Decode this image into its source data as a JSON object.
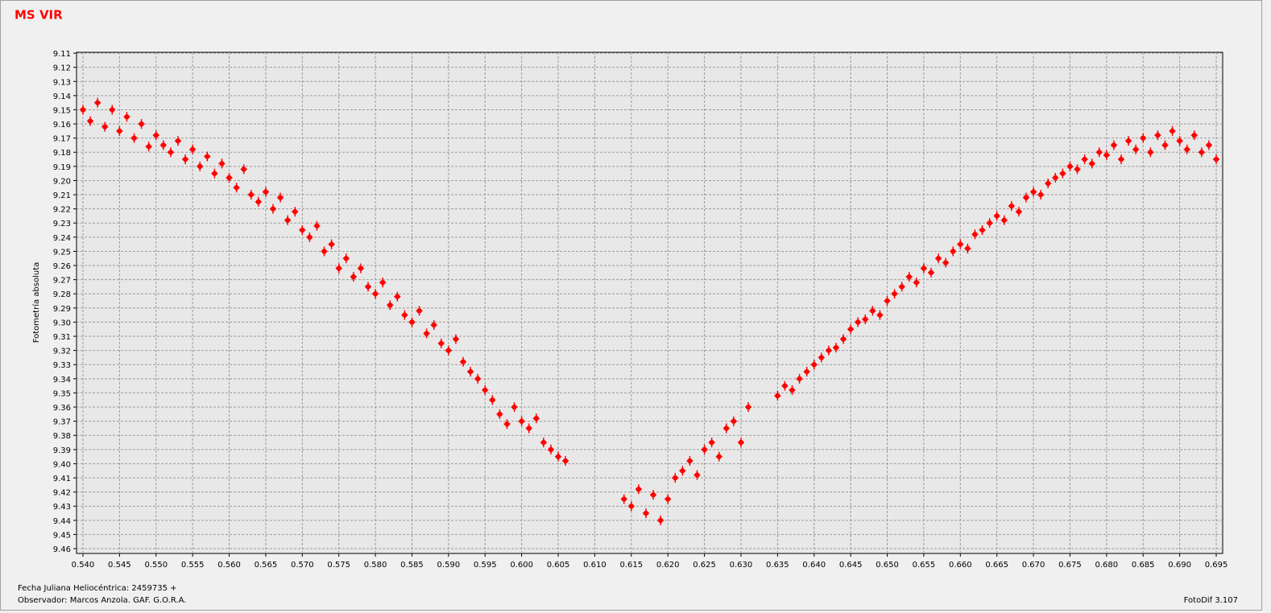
{
  "chart_data": {
    "type": "scatter",
    "title": "MS VIR",
    "y_label": "Fotometría absoluta",
    "x_label": "Fecha Juliana Heliocéntrica: 2459735 +",
    "observer": "Observador:  Marcos Anzola. GAF. G.O.R.A.",
    "software": "FotoDif 3.107",
    "color": "#ff0000",
    "grid": true,
    "y_inverted": true,
    "xlim": [
      0.53912,
      0.69588
    ],
    "ylim": [
      9.1094,
      9.4634
    ],
    "xticks": [
      {
        "value": 0.54,
        "label": "0.540"
      },
      0.545,
      {
        "value": 0.55,
        "label": "0.550"
      },
      0.555,
      {
        "value": 0.56,
        "label": "0.560"
      },
      0.565,
      {
        "value": 0.57,
        "label": "0.570"
      },
      0.575,
      {
        "value": 0.58,
        "label": "0.580"
      },
      0.585,
      {
        "value": 0.59,
        "label": "0.590"
      },
      0.595,
      {
        "value": 0.6,
        "label": "0.600"
      },
      0.605,
      {
        "value": 0.61,
        "label": "0.610"
      },
      0.615,
      {
        "value": 0.62,
        "label": "0.620"
      },
      0.625,
      {
        "value": 0.63,
        "label": "0.630"
      },
      0.635,
      {
        "value": 0.64,
        "label": "0.640"
      },
      0.645,
      {
        "value": 0.65,
        "label": "0.650"
      },
      0.655,
      {
        "value": 0.66,
        "label": "0.660"
      },
      0.665,
      {
        "value": 0.67,
        "label": "0.670"
      },
      0.675,
      {
        "value": 0.68,
        "label": "0.680"
      },
      0.685,
      {
        "value": 0.69,
        "label": "0.690"
      },
      0.695
    ],
    "yticks": [
      9.11,
      9.12,
      9.13,
      9.14,
      9.15,
      9.16,
      9.17,
      9.18,
      9.19,
      {
        "value": 9.2,
        "label": "9.20"
      },
      9.21,
      9.22,
      9.23,
      9.24,
      9.25,
      9.26,
      9.27,
      9.28,
      9.29,
      {
        "value": 9.3,
        "label": "9.30"
      },
      9.31,
      9.32,
      9.33,
      9.34,
      9.35,
      9.36,
      9.37,
      9.38,
      9.39,
      {
        "value": 9.4,
        "label": "9.40"
      },
      9.41,
      9.42,
      9.43,
      9.44,
      9.45,
      9.46
    ],
    "x": [
      0.54,
      0.541,
      0.542,
      0.543,
      0.544,
      0.545,
      0.546,
      0.547,
      0.548,
      0.549,
      0.55,
      0.551,
      0.552,
      0.553,
      0.554,
      0.555,
      0.556,
      0.557,
      0.558,
      0.559,
      0.56,
      0.561,
      0.562,
      0.563,
      0.564,
      0.565,
      0.566,
      0.567,
      0.568,
      0.569,
      0.57,
      0.571,
      0.572,
      0.573,
      0.574,
      0.575,
      0.576,
      0.577,
      0.578,
      0.579,
      0.58,
      0.581,
      0.582,
      0.583,
      0.584,
      0.585,
      0.586,
      0.587,
      0.588,
      0.589,
      0.59,
      0.591,
      0.592,
      0.593,
      0.594,
      0.595,
      0.596,
      0.597,
      0.598,
      0.599,
      0.6,
      0.601,
      0.602,
      0.603,
      0.604,
      0.605,
      0.606,
      0.614,
      0.615,
      0.616,
      0.617,
      0.618,
      0.619,
      0.62,
      0.621,
      0.622,
      0.623,
      0.624,
      0.625,
      0.626,
      0.627,
      0.628,
      0.629,
      0.63,
      0.631,
      0.635,
      0.636,
      0.637,
      0.638,
      0.639,
      0.64,
      0.641,
      0.642,
      0.643,
      0.644,
      0.645,
      0.646,
      0.647,
      0.648,
      0.649,
      0.65,
      0.651,
      0.652,
      0.653,
      0.654,
      0.655,
      0.656,
      0.657,
      0.658,
      0.659,
      0.66,
      0.661,
      0.662,
      0.663,
      0.664,
      0.665,
      0.666,
      0.667,
      0.668,
      0.669,
      0.67,
      0.671,
      0.672,
      0.673,
      0.674,
      0.675,
      0.676,
      0.677,
      0.678,
      0.679,
      0.68,
      0.681,
      0.682,
      0.683,
      0.684,
      0.685,
      0.686,
      0.687,
      0.688,
      0.689,
      0.69,
      0.691,
      0.692,
      0.693,
      0.694,
      0.695
    ],
    "values": [
      9.15,
      9.158,
      9.145,
      9.162,
      9.15,
      9.165,
      9.155,
      9.17,
      9.16,
      9.176,
      9.168,
      9.175,
      9.18,
      9.172,
      9.185,
      9.178,
      9.19,
      9.183,
      9.195,
      9.188,
      9.198,
      9.205,
      9.192,
      9.21,
      9.215,
      9.208,
      9.22,
      9.212,
      9.228,
      9.222,
      9.235,
      9.24,
      9.232,
      9.25,
      9.245,
      9.262,
      9.255,
      9.268,
      9.262,
      9.275,
      9.28,
      9.272,
      9.288,
      9.282,
      9.295,
      9.3,
      9.292,
      9.308,
      9.302,
      9.315,
      9.32,
      9.312,
      9.328,
      9.335,
      9.34,
      9.348,
      9.355,
      9.365,
      9.372,
      9.36,
      9.37,
      9.375,
      9.368,
      9.385,
      9.39,
      9.395,
      9.398,
      9.425,
      9.43,
      9.418,
      9.435,
      9.422,
      9.44,
      9.425,
      9.41,
      9.405,
      9.398,
      9.408,
      9.39,
      9.385,
      9.395,
      9.375,
      9.37,
      9.385,
      9.36,
      9.352,
      9.345,
      9.348,
      9.34,
      9.335,
      9.33,
      9.325,
      9.32,
      9.318,
      9.312,
      9.305,
      9.3,
      9.298,
      9.292,
      9.295,
      9.285,
      9.28,
      9.275,
      9.268,
      9.272,
      9.262,
      9.265,
      9.255,
      9.258,
      9.25,
      9.245,
      9.248,
      9.238,
      9.235,
      9.23,
      9.225,
      9.228,
      9.218,
      9.222,
      9.212,
      9.208,
      9.21,
      9.202,
      9.198,
      9.195,
      9.19,
      9.192,
      9.185,
      9.188,
      9.18,
      9.182,
      9.175,
      9.185,
      9.172,
      9.178,
      9.17,
      9.18,
      9.168,
      9.175,
      9.165,
      9.172,
      9.178,
      9.168,
      9.18,
      9.175,
      9.185
    ]
  }
}
